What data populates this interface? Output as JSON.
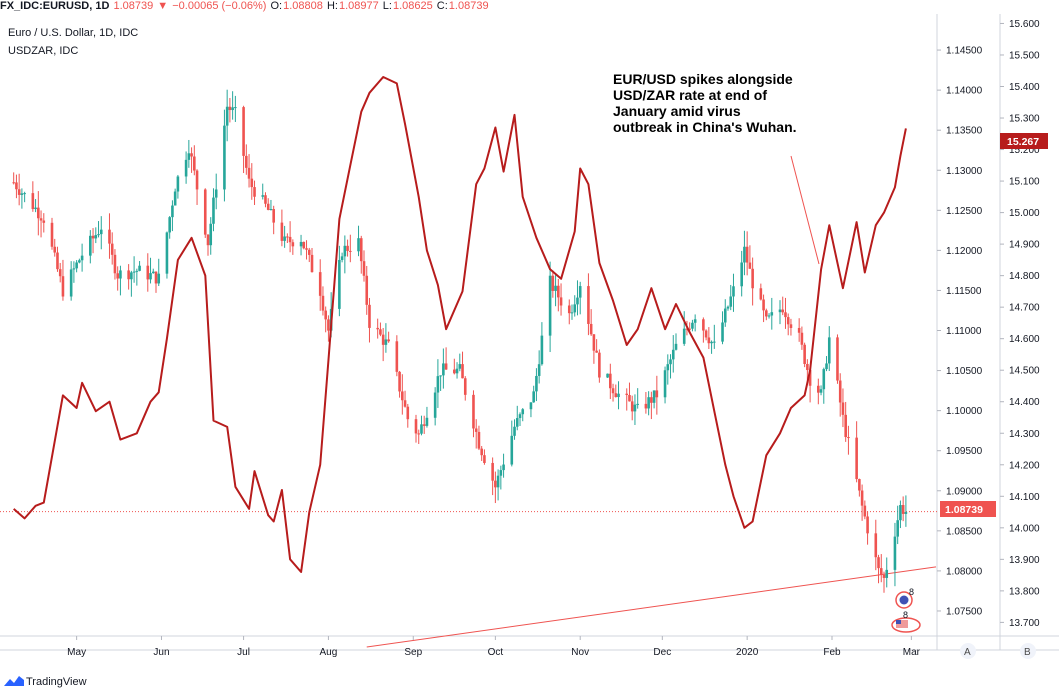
{
  "header": {
    "symbol": "FX_IDC:EURUSD, 1D",
    "last": "1.08739",
    "change": "−0.00065 (−0.06%)",
    "o_label": "O:",
    "o": "1.08808",
    "h_label": "H:",
    "h": "1.08977",
    "l_label": "L:",
    "l": "1.08625",
    "c_label": "C:",
    "c": "1.08739"
  },
  "legend": {
    "main": "Euro / U.S. Dollar, 1D, IDC",
    "overlay": "USDZAR, IDC"
  },
  "annotation": {
    "lines": [
      "EUR/USD spikes alongside",
      "USD/ZAR rate at end of",
      "January amid virus",
      "outbreak in China's Wuhan."
    ]
  },
  "price_badges": {
    "zar_last": "15.267",
    "eur_last": "1.08739"
  },
  "axis_buttons": {
    "a": "A",
    "b": "B"
  },
  "events": {
    "badge1": "8",
    "badge2": "8"
  },
  "footer": {
    "brand": "TradingView"
  },
  "colors": {
    "up": "#26a69a",
    "down": "#ef5350",
    "overlay_line": "#b71c1c",
    "trendline": "#ef5350"
  },
  "chart_data": {
    "type": "line",
    "x_tick_labels": [
      "May",
      "Jun",
      "Jul",
      "Aug",
      "Sep",
      "Oct",
      "Nov",
      "Dec",
      "2020",
      "Feb",
      "Mar"
    ],
    "y_inner_ticks": [
      "1.07500",
      "1.08000",
      "1.08500",
      "1.09000",
      "1.09500",
      "1.10000",
      "1.10500",
      "1.11000",
      "1.11500",
      "1.12000",
      "1.12500",
      "1.13000",
      "1.13500",
      "1.14000",
      "1.14500"
    ],
    "y_outer_ticks": [
      "13.700",
      "13.800",
      "13.900",
      "14.000",
      "14.100",
      "14.200",
      "14.300",
      "14.400",
      "14.500",
      "14.600",
      "14.700",
      "14.800",
      "14.900",
      "15.000",
      "15.100",
      "15.200",
      "15.300",
      "15.400",
      "15.500",
      "15.600"
    ],
    "ylim_eurusd": [
      1.072,
      1.1495
    ],
    "ylim_usdzar": [
      13.66,
      15.63
    ],
    "series": [
      {
        "name": "Euro / U.S. Dollar, 1D, IDC",
        "kind": "candlestick-close",
        "anchors": [
          [
            "2019-04-08",
            1.1285
          ],
          [
            "2019-04-19",
            1.124
          ],
          [
            "2019-04-26",
            1.115
          ],
          [
            "2019-05-03",
            1.1195
          ],
          [
            "2019-05-10",
            1.123
          ],
          [
            "2019-05-16",
            1.117
          ],
          [
            "2019-05-23",
            1.1175
          ],
          [
            "2019-05-31",
            1.1165
          ],
          [
            "2019-06-06",
            1.128
          ],
          [
            "2019-06-11",
            1.133
          ],
          [
            "2019-06-18",
            1.121
          ],
          [
            "2019-06-25",
            1.138
          ],
          [
            "2019-06-28",
            1.137
          ],
          [
            "2019-07-03",
            1.1285
          ],
          [
            "2019-07-10",
            1.125
          ],
          [
            "2019-07-16",
            1.121
          ],
          [
            "2019-07-22",
            1.1215
          ],
          [
            "2019-07-29",
            1.115
          ],
          [
            "2019-08-01",
            1.11
          ],
          [
            "2019-08-06",
            1.12
          ],
          [
            "2019-08-12",
            1.121
          ],
          [
            "2019-08-16",
            1.111
          ],
          [
            "2019-08-23",
            1.108
          ],
          [
            "2019-08-30",
            1.099
          ],
          [
            "2019-09-03",
            1.097
          ],
          [
            "2019-09-11",
            1.105
          ],
          [
            "2019-09-18",
            1.105
          ],
          [
            "2019-09-25",
            1.096
          ],
          [
            "2019-10-01",
            1.0905
          ],
          [
            "2019-10-08",
            1.098
          ],
          [
            "2019-10-15",
            1.102
          ],
          [
            "2019-10-21",
            1.116
          ],
          [
            "2019-10-28",
            1.112
          ],
          [
            "2019-11-01",
            1.116
          ],
          [
            "2019-11-08",
            1.105
          ],
          [
            "2019-11-15",
            1.102
          ],
          [
            "2019-11-22",
            1.1
          ],
          [
            "2019-11-29",
            1.102
          ],
          [
            "2019-12-06",
            1.108
          ],
          [
            "2019-12-13",
            1.112
          ],
          [
            "2019-12-20",
            1.108
          ],
          [
            "2019-12-27",
            1.115
          ],
          [
            "2019-12-31",
            1.12
          ],
          [
            "2020-01-03",
            1.116
          ],
          [
            "2020-01-08",
            1.111
          ],
          [
            "2020-01-14",
            1.113
          ],
          [
            "2020-01-20",
            1.109
          ],
          [
            "2020-01-24",
            1.104
          ],
          [
            "2020-01-28",
            1.102
          ],
          [
            "2020-01-31",
            1.109
          ],
          [
            "2020-02-05",
            1.099
          ],
          [
            "2020-02-12",
            1.088
          ],
          [
            "2020-02-18",
            1.08
          ],
          [
            "2020-02-20",
            1.079
          ],
          [
            "2020-02-24",
            1.085
          ],
          [
            "2020-02-26",
            1.088
          ],
          [
            "2020-02-28",
            1.0874
          ]
        ]
      },
      {
        "name": "USDZAR, IDC",
        "kind": "line",
        "anchors": [
          [
            "2019-04-08",
            14.06
          ],
          [
            "2019-04-12",
            14.03
          ],
          [
            "2019-04-16",
            14.07
          ],
          [
            "2019-04-19",
            14.08
          ],
          [
            "2019-04-26",
            14.42
          ],
          [
            "2019-05-01",
            14.38
          ],
          [
            "2019-05-03",
            14.46
          ],
          [
            "2019-05-08",
            14.37
          ],
          [
            "2019-05-13",
            14.4
          ],
          [
            "2019-05-17",
            14.28
          ],
          [
            "2019-05-23",
            14.3
          ],
          [
            "2019-05-28",
            14.4
          ],
          [
            "2019-05-31",
            14.43
          ],
          [
            "2019-06-03",
            14.6
          ],
          [
            "2019-06-07",
            14.85
          ],
          [
            "2019-06-12",
            14.92
          ],
          [
            "2019-06-17",
            14.8
          ],
          [
            "2019-06-20",
            14.34
          ],
          [
            "2019-06-25",
            14.32
          ],
          [
            "2019-06-28",
            14.13
          ],
          [
            "2019-07-03",
            14.06
          ],
          [
            "2019-07-05",
            14.18
          ],
          [
            "2019-07-10",
            14.04
          ],
          [
            "2019-07-12",
            14.02
          ],
          [
            "2019-07-15",
            14.12
          ],
          [
            "2019-07-18",
            13.9
          ],
          [
            "2019-07-22",
            13.86
          ],
          [
            "2019-07-25",
            14.05
          ],
          [
            "2019-07-29",
            14.2
          ],
          [
            "2019-08-01",
            14.53
          ],
          [
            "2019-08-05",
            14.98
          ],
          [
            "2019-08-09",
            15.15
          ],
          [
            "2019-08-13",
            15.32
          ],
          [
            "2019-08-16",
            15.38
          ],
          [
            "2019-08-21",
            15.43
          ],
          [
            "2019-08-26",
            15.41
          ],
          [
            "2019-08-29",
            15.28
          ],
          [
            "2019-09-03",
            15.05
          ],
          [
            "2019-09-06",
            14.88
          ],
          [
            "2019-09-10",
            14.77
          ],
          [
            "2019-09-13",
            14.63
          ],
          [
            "2019-09-19",
            14.75
          ],
          [
            "2019-09-24",
            15.09
          ],
          [
            "2019-09-27",
            15.14
          ],
          [
            "2019-10-01",
            15.27
          ],
          [
            "2019-10-04",
            15.13
          ],
          [
            "2019-10-08",
            15.31
          ],
          [
            "2019-10-11",
            15.05
          ],
          [
            "2019-10-16",
            14.92
          ],
          [
            "2019-10-21",
            14.82
          ],
          [
            "2019-10-25",
            14.79
          ],
          [
            "2019-10-30",
            14.94
          ],
          [
            "2019-11-01",
            15.14
          ],
          [
            "2019-11-04",
            15.09
          ],
          [
            "2019-11-08",
            14.84
          ],
          [
            "2019-11-13",
            14.72
          ],
          [
            "2019-11-18",
            14.58
          ],
          [
            "2019-11-22",
            14.63
          ],
          [
            "2019-11-27",
            14.76
          ],
          [
            "2019-12-02",
            14.63
          ],
          [
            "2019-12-06",
            14.71
          ],
          [
            "2019-12-11",
            14.62
          ],
          [
            "2019-12-16",
            14.54
          ],
          [
            "2019-12-20",
            14.37
          ],
          [
            "2019-12-24",
            14.2
          ],
          [
            "2019-12-27",
            14.1
          ],
          [
            "2019-12-31",
            14.0
          ],
          [
            "2020-01-03",
            14.02
          ],
          [
            "2020-01-08",
            14.23
          ],
          [
            "2020-01-13",
            14.3
          ],
          [
            "2020-01-17",
            14.38
          ],
          [
            "2020-01-22",
            14.42
          ],
          [
            "2020-01-24",
            14.5
          ],
          [
            "2020-01-28",
            14.82
          ],
          [
            "2020-01-31",
            14.96
          ],
          [
            "2020-02-05",
            14.76
          ],
          [
            "2020-02-10",
            14.97
          ],
          [
            "2020-02-13",
            14.81
          ],
          [
            "2020-02-17",
            14.96
          ],
          [
            "2020-02-20",
            15.0
          ],
          [
            "2020-02-24",
            15.08
          ],
          [
            "2020-02-26",
            15.18
          ],
          [
            "2020-02-28",
            15.267
          ]
        ]
      }
    ],
    "trendline": {
      "from": [
        "2019-08-15",
        1.0705
      ],
      "to": [
        "2020-03-10",
        1.0805
      ]
    },
    "last_price_line": 1.08739,
    "grid": false,
    "legend_position": "top-left"
  }
}
